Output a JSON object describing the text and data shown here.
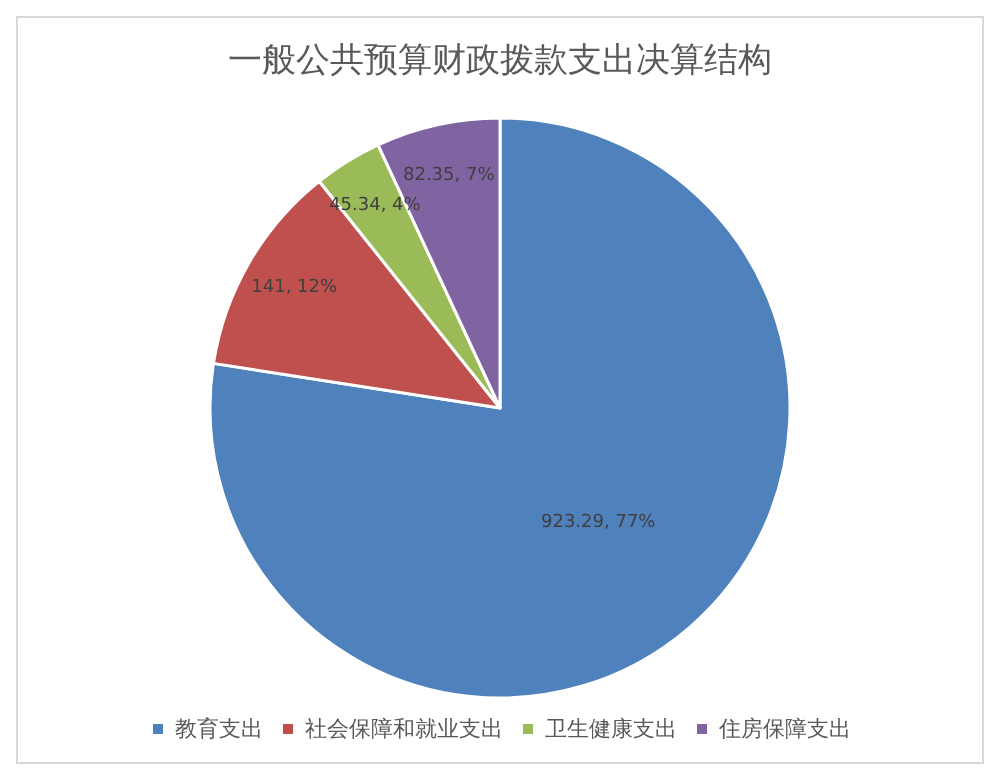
{
  "chart_data": {
    "type": "pie",
    "title": "一般公共预算财政拨款支出决算结构",
    "categories": [
      "教育支出",
      "社会保障和就业支出",
      "卫生健康支出",
      "住房保障支出"
    ],
    "values": [
      923.29,
      141,
      45.34,
      82.35
    ],
    "colors": [
      "#4f81bd",
      "#c0504d",
      "#9bbb59",
      "#8064a2"
    ],
    "value_labels": [
      "923.29, 77%",
      "141, 12%",
      "45.34, 4%",
      "82.35, 7%"
    ],
    "legend": "bottom"
  }
}
